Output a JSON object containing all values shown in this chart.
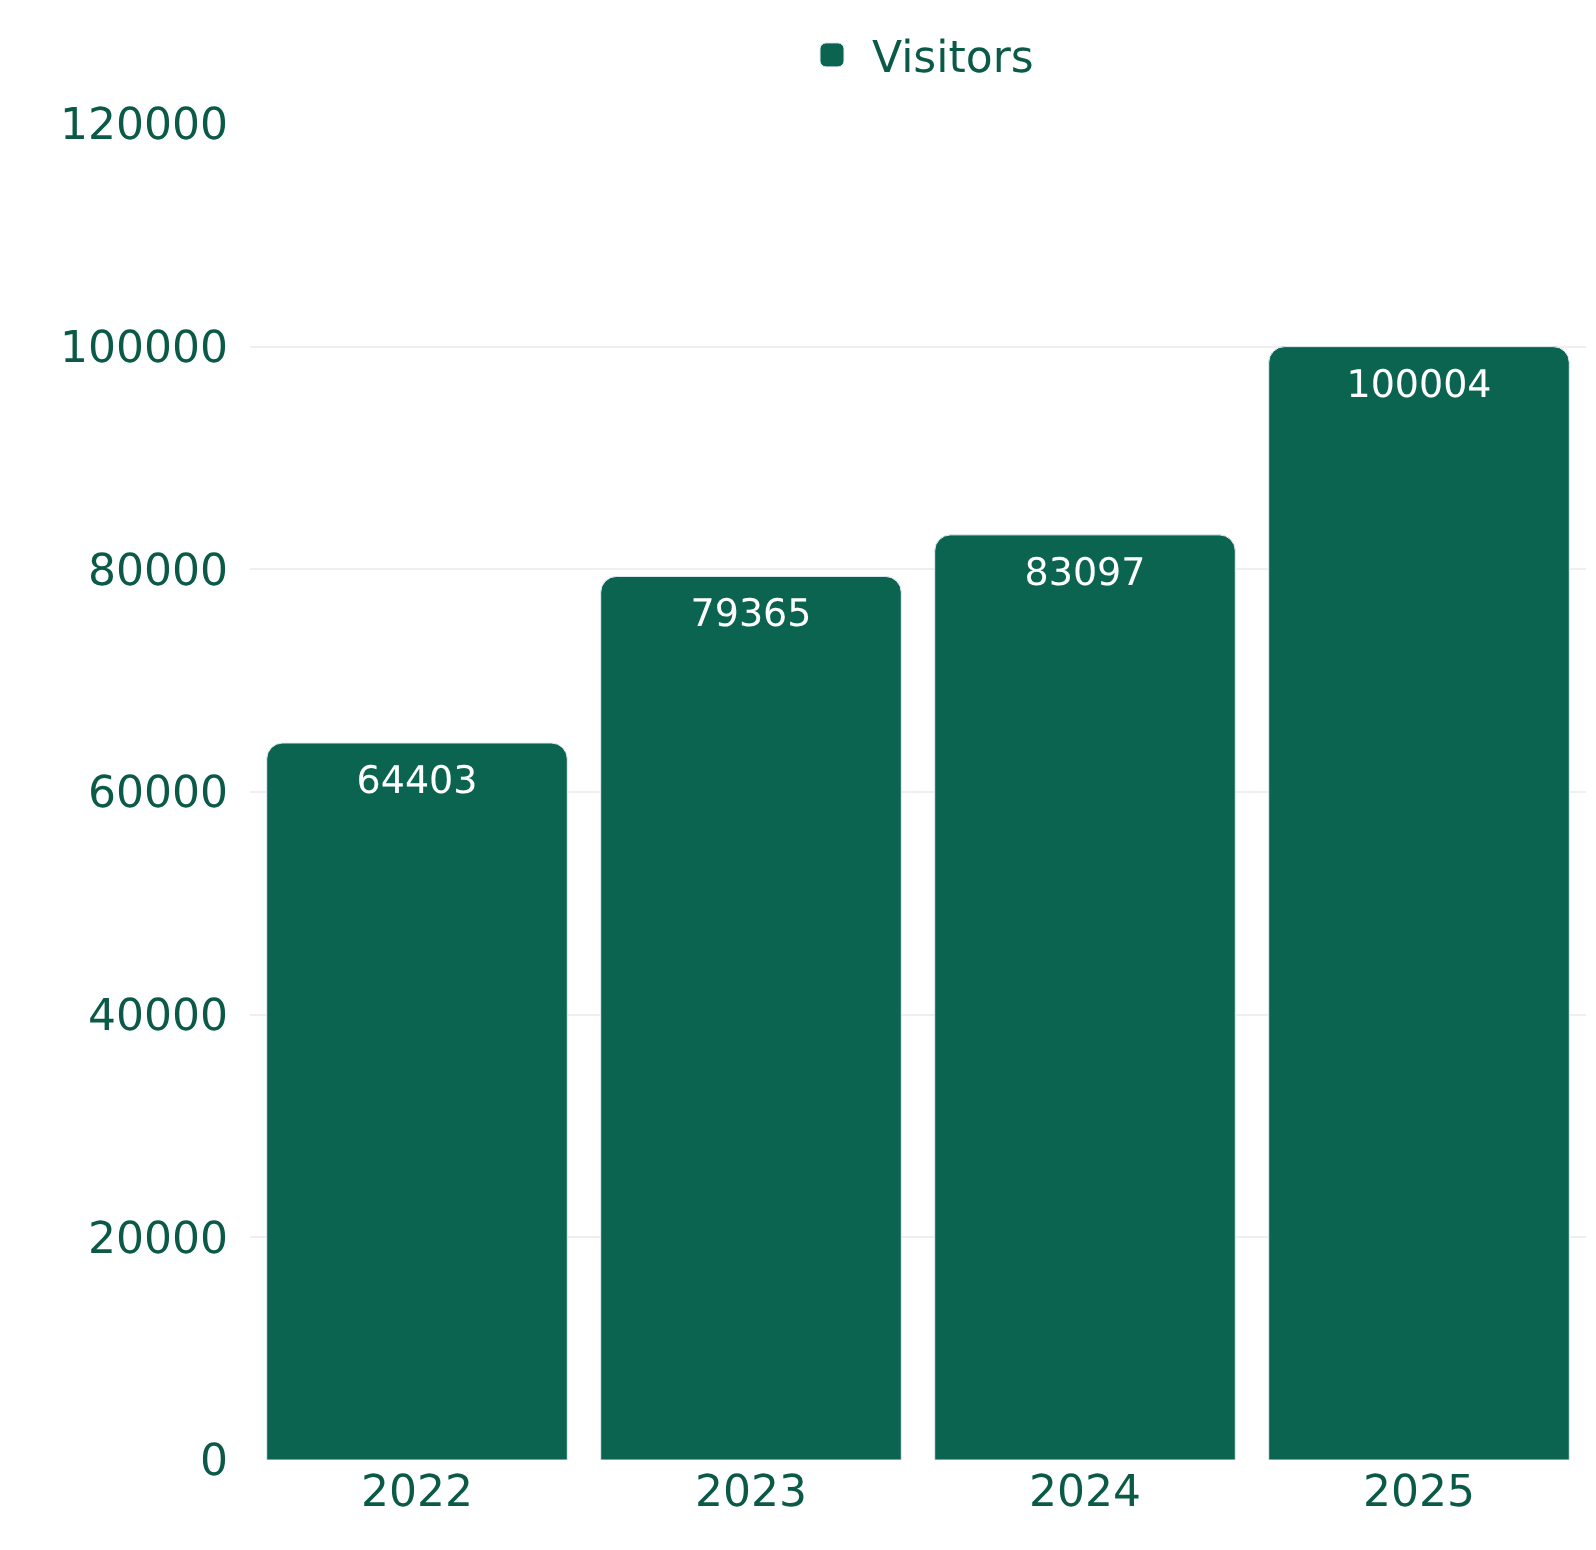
{
  "chart_data": {
    "type": "bar",
    "categories": [
      "2022",
      "2023",
      "2024",
      "2025"
    ],
    "series": [
      {
        "name": "Visitors",
        "color": "#0b6450",
        "values": [
          64403,
          79365,
          83097,
          100004
        ]
      }
    ],
    "ylim": [
      0,
      120000
    ],
    "yticks": [
      0,
      20000,
      40000,
      60000,
      80000,
      100000,
      120000
    ],
    "grid": "y",
    "legend": "top",
    "data_labels": true
  }
}
